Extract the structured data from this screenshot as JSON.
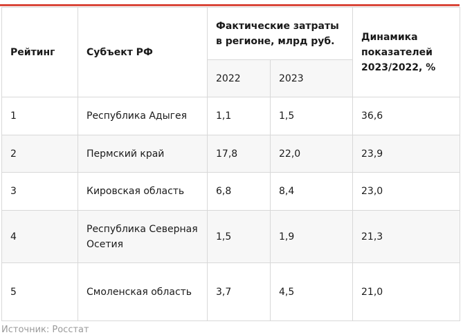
{
  "table": {
    "headers": {
      "rank": "Рейтинг",
      "region": "Субъект РФ",
      "costs_group": "Фактические затраты в регионе, млрд руб.",
      "year1": "2022",
      "year2": "2023",
      "dynamics": "Динамика показателей 2023/2022, %"
    },
    "rows": [
      {
        "rank": "1",
        "region": "Республика Адыгея",
        "y2022": "1,1",
        "y2023": "1,5",
        "dyn": "36,6"
      },
      {
        "rank": "2",
        "region": "Пермский край",
        "y2022": "17,8",
        "y2023": "22,0",
        "dyn": "23,9"
      },
      {
        "rank": "3",
        "region": "Кировская область",
        "y2022": "6,8",
        "y2023": "8,4",
        "dyn": "23,0"
      },
      {
        "rank": "4",
        "region": "Республика Северная Осетия",
        "y2022": "1,5",
        "y2023": "1,9",
        "dyn": "21,3"
      },
      {
        "rank": "5",
        "region": "Смоленская область",
        "y2022": "3,7",
        "y2023": "4,5",
        "dyn": "21,0"
      }
    ]
  },
  "source": "Источник: Росстат",
  "colors": {
    "accent": "#d9473a",
    "border": "#d8d8d8",
    "alt_row": "#f7f7f7"
  }
}
